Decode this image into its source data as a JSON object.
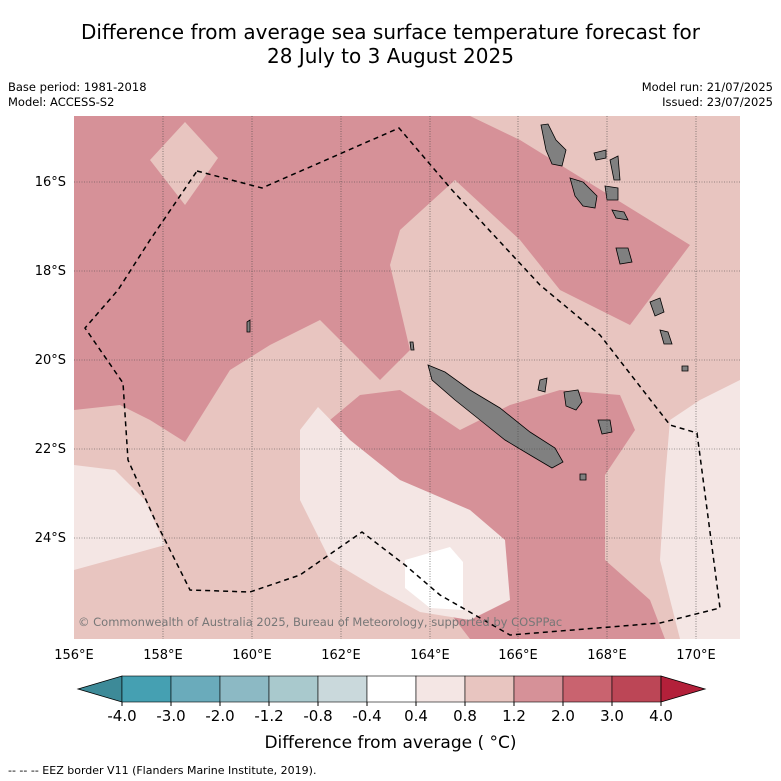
{
  "title_line1": "Difference from average sea surface temperature forecast for",
  "title_line2": "28 July to 3 August 2025",
  "base_period": "Base period: 1981-2018",
  "model": "Model: ACCESS-S2",
  "model_run": "Model run: 21/07/2025",
  "issued": "Issued: 23/07/2025",
  "copyright": "© Commonwealth of Australia 2025, Bureau of Meteorology, supported by COSPPac",
  "lat_labels": [
    "16°S",
    "18°S",
    "20°S",
    "22°S",
    "24°S"
  ],
  "lon_labels": [
    "156°E",
    "158°E",
    "160°E",
    "162°E",
    "164°E",
    "166°E",
    "168°E",
    "170°E"
  ],
  "colorbar": {
    "ticks": [
      "-4.0",
      "-3.0",
      "-2.0",
      "-1.2",
      "-0.8",
      "-0.4",
      "0.4",
      "0.8",
      "1.2",
      "2.0",
      "3.0",
      "4.0"
    ],
    "colors": [
      "#45a0b2",
      "#6aabbb",
      "#8cb9c4",
      "#a9c9cd",
      "#cad9dc",
      "#ffffff",
      "#f4e6e4",
      "#e8c5c0",
      "#d69198",
      "#c9636f",
      "#bc4656"
    ],
    "under_color": "#3d8a98",
    "over_color": "#b3203a",
    "title": "Difference from average ( °C)"
  },
  "footnote": "--  --  -- EEZ border V11 (Flanders Marine Institute, 2019).",
  "land_color": "#808080"
}
